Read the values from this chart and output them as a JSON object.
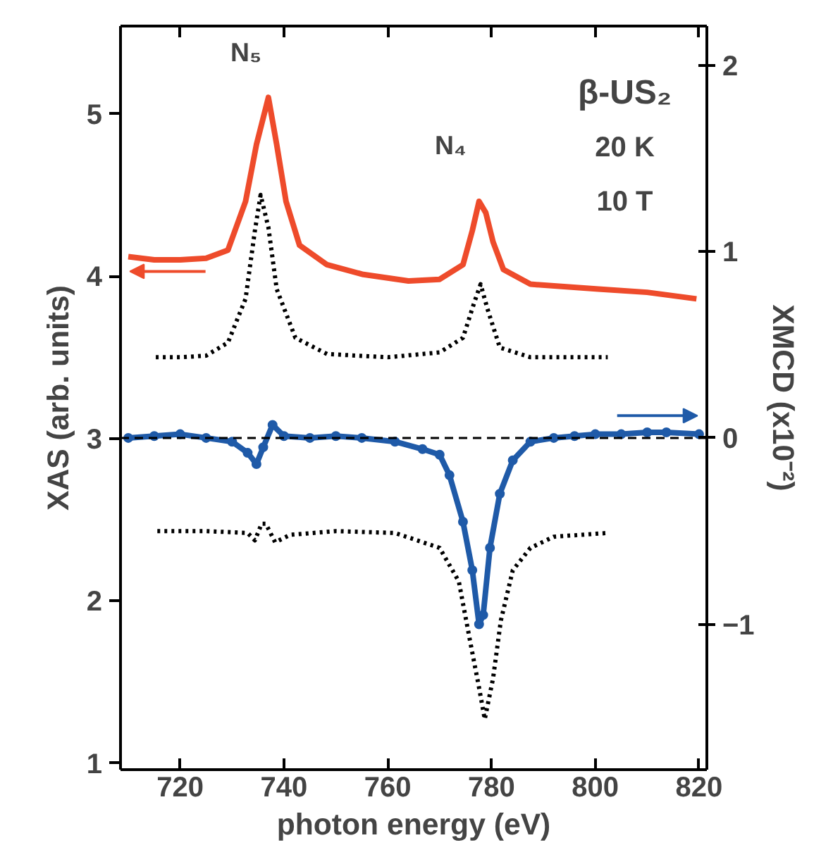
{
  "chart_data": {
    "type": "line",
    "xlabel": "photon energy (eV)",
    "ylabel": "XAS (arb. units)",
    "y2label": "XMCD (x10⁻²)",
    "xlim": [
      708.5,
      821.5
    ],
    "xticks": [
      720,
      740,
      760,
      780,
      800,
      820
    ],
    "ylim": [
      0.96,
      5.54
    ],
    "yticks": [
      1,
      2,
      3,
      4,
      5
    ],
    "y2lim": [
      -1.78,
      2.21
    ],
    "y2ticks": [
      -1,
      0,
      1,
      2
    ],
    "grid": false,
    "series": [
      {
        "color": "#ee4b2b",
        "line_style": "solid",
        "x": [
          710,
          715,
          720,
          725,
          729.2,
          732.6,
          734.7,
          737,
          738.6,
          740.4,
          743,
          748.3,
          755.3,
          764,
          770,
          774.5,
          776.3,
          777.6,
          778.9,
          780.3,
          782.3,
          787.5,
          800.6,
          810,
          819.5
        ],
        "values": [
          4.12,
          4.1,
          4.1,
          4.11,
          4.16,
          4.46,
          4.81,
          5.1,
          4.81,
          4.46,
          4.19,
          4.07,
          4.01,
          3.97,
          3.98,
          4.07,
          4.28,
          4.46,
          4.39,
          4.21,
          4.04,
          3.95,
          3.92,
          3.9,
          3.86
        ]
      },
      {
        "color": "#000000",
        "line_style": "dotted",
        "x": [
          715.3,
          720,
          725,
          729.2,
          732.6,
          734.4,
          735.5,
          737,
          738.6,
          742.2,
          748.3,
          760,
          770,
          774.5,
          776.6,
          777.9,
          779.2,
          781.6,
          787.5,
          795,
          802.4
        ],
        "values": [
          3.5,
          3.5,
          3.51,
          3.59,
          3.86,
          4.28,
          4.5,
          4.3,
          3.92,
          3.62,
          3.52,
          3.5,
          3.53,
          3.62,
          3.83,
          3.95,
          3.8,
          3.56,
          3.5,
          3.5,
          3.5
        ]
      },
      {
        "color": "#1f5aa8",
        "axis": "y2",
        "line_style": "solid",
        "marker": "circle",
        "x": [
          710,
          715,
          720,
          725,
          730,
          733,
          734.7,
          736,
          737.8,
          740,
          745,
          750,
          755,
          761.4,
          766.7,
          770,
          771.9,
          774.5,
          776.3,
          777.6,
          778.4,
          779.7,
          781.6,
          784.1,
          787.5,
          792,
          796,
          800,
          805,
          810,
          813.7,
          820
        ],
        "values": [
          0.0,
          0.01,
          0.02,
          0.0,
          -0.02,
          -0.08,
          -0.14,
          -0.05,
          0.07,
          0.01,
          0.0,
          0.01,
          0.0,
          -0.02,
          -0.06,
          -0.09,
          -0.2,
          -0.45,
          -0.71,
          -1.0,
          -0.95,
          -0.59,
          -0.3,
          -0.12,
          -0.02,
          0.0,
          0.01,
          0.02,
          0.02,
          0.03,
          0.03,
          0.02
        ]
      },
      {
        "color": "#000000",
        "axis": "y2",
        "line_style": "dotted",
        "x": [
          715.6,
          725,
          733,
          734.4,
          735.7,
          736.5,
          738.3,
          741.2,
          750,
          761.4,
          770,
          773.7,
          775.8,
          777.6,
          778.7,
          780.3,
          781.8,
          784.1,
          787.5,
          792,
          802.4
        ],
        "values": [
          -0.5,
          -0.5,
          -0.51,
          -0.55,
          -0.46,
          -0.46,
          -0.56,
          -0.52,
          -0.5,
          -0.51,
          -0.59,
          -0.77,
          -1.08,
          -1.34,
          -1.51,
          -1.29,
          -0.98,
          -0.71,
          -0.59,
          -0.53,
          -0.51
        ]
      }
    ],
    "ref_lines": [
      {
        "axis": "y2",
        "value": 0,
        "line_style": "dashed",
        "color": "#000000"
      }
    ],
    "annotations": [
      "N₅",
      "N₄",
      "β-US₂",
      "20 K",
      "10 T"
    ]
  }
}
